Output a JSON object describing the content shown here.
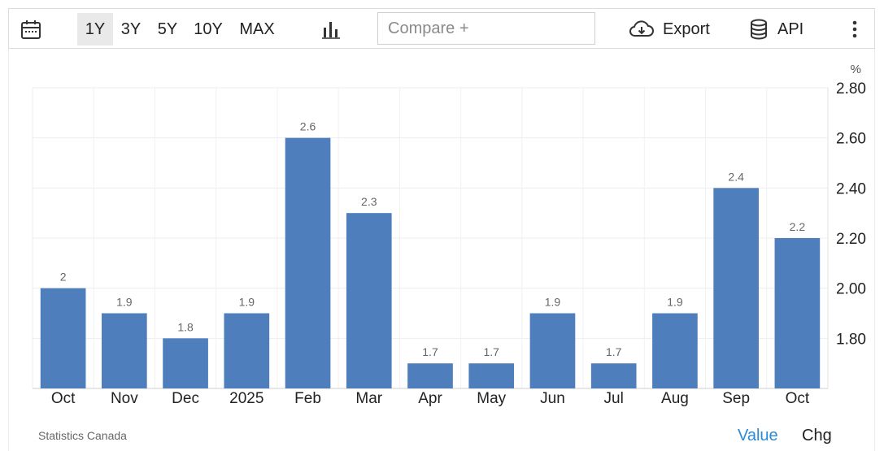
{
  "toolbar": {
    "ranges": [
      "1Y",
      "3Y",
      "5Y",
      "10Y",
      "MAX"
    ],
    "active_range": "1Y",
    "compare_placeholder": "Compare +",
    "export_label": "Export",
    "api_label": "API",
    "icons": {
      "calendar": "calendar-icon",
      "chart_type": "bar-chart-icon",
      "export": "cloud-download-icon",
      "api": "database-icon",
      "more": "more-vertical-icon"
    }
  },
  "chart_data": {
    "type": "bar",
    "categories": [
      "Oct",
      "Nov",
      "Dec",
      "2025",
      "Feb",
      "Mar",
      "Apr",
      "May",
      "Jun",
      "Jul",
      "Aug",
      "Sep",
      "Oct"
    ],
    "values": [
      2.0,
      1.9,
      1.8,
      1.9,
      2.6,
      2.3,
      1.7,
      1.7,
      1.9,
      1.7,
      1.9,
      2.4,
      2.2
    ],
    "value_labels": [
      "2",
      "1.9",
      "1.8",
      "1.9",
      "2.6",
      "2.3",
      "1.7",
      "1.7",
      "1.9",
      "1.7",
      "1.9",
      "2.4",
      "2.2"
    ],
    "y_unit": "%",
    "y_ticks": [
      "1.80",
      "2.00",
      "2.20",
      "2.40",
      "2.60",
      "2.80"
    ],
    "y_axis_position": "right",
    "ylim": [
      1.6,
      2.8
    ],
    "grid": true,
    "bar_color": "#4e7fbc"
  },
  "footer": {
    "source": "Statistics Canada",
    "view_value": "Value",
    "view_chg": "Chg",
    "active_color": "#2a8ad6"
  }
}
